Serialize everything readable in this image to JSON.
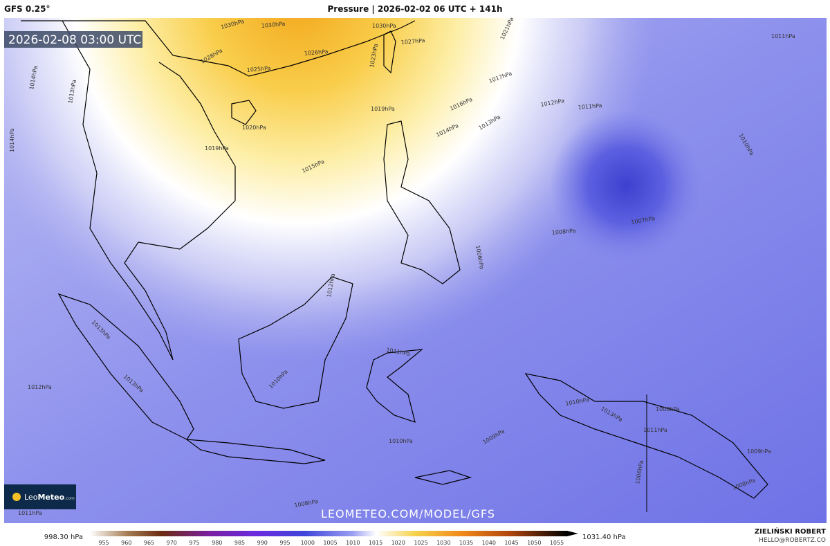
{
  "header": {
    "model": "GFS 0.25°",
    "title": "Pressure | 2026-02-02 06 UTC + 141h"
  },
  "timestamp": "2026-02-08 03:00 UTC",
  "watermark": "LEOMETEO.COM/MODEL/GFS",
  "logo": {
    "leo": "Leo",
    "meteo": "Meteo",
    "domain": ".com"
  },
  "author": {
    "name": "ZIELIŃSKI ROBERT",
    "email": "HELLO@ROBERTZ.CO"
  },
  "legend": {
    "min_label": "998.30 hPa",
    "max_label": "1031.40 hPa",
    "ticks": [
      955,
      960,
      965,
      970,
      975,
      980,
      985,
      990,
      995,
      1000,
      1005,
      1010,
      1015,
      1020,
      1025,
      1030,
      1035,
      1040,
      1045,
      1050,
      1055
    ]
  },
  "isobar_labels": [
    "1030hPa",
    "1030hPa",
    "1030hPa",
    "1027hPa",
    "1021hPa",
    "1026hPa",
    "1028hPa",
    "1025hPa",
    "1023hPa",
    "1017hPa",
    "1012hPa",
    "1011hPa",
    "1016hPa",
    "1019hPa",
    "1020hPa",
    "1014hPa",
    "1013hPa",
    "1019hPa",
    "1015hPa",
    "1011hPa",
    "1010hPa",
    "1014hPa",
    "1014hPa",
    "1013hPa",
    "1007hPa",
    "1008hPa",
    "1006hPa",
    "1012hPa",
    "1013hPa",
    "1013hPa",
    "1012hPa",
    "1010hPa",
    "1011hPa",
    "1010hPa",
    "1009hPa",
    "1011hPa",
    "1008hPa",
    "1010hPa",
    "1013hPa",
    "1008hPa",
    "1011hPa",
    "1009hPa",
    "1008hPa",
    "1006hPa"
  ]
}
